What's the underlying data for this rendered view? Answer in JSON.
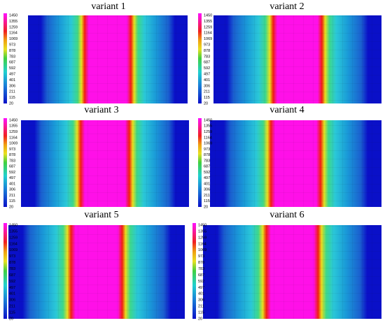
{
  "panels": [
    {
      "title": "variant 1"
    },
    {
      "title": "variant 2"
    },
    {
      "title": "variant 3"
    },
    {
      "title": "variant 4"
    },
    {
      "title": "variant 5"
    },
    {
      "title": "variant 6"
    }
  ],
  "colorbar_ticks": [
    1450,
    1355,
    1259,
    1164,
    1069,
    973,
    878,
    783,
    687,
    592,
    497,
    401,
    306,
    211,
    115,
    20
  ]
}
